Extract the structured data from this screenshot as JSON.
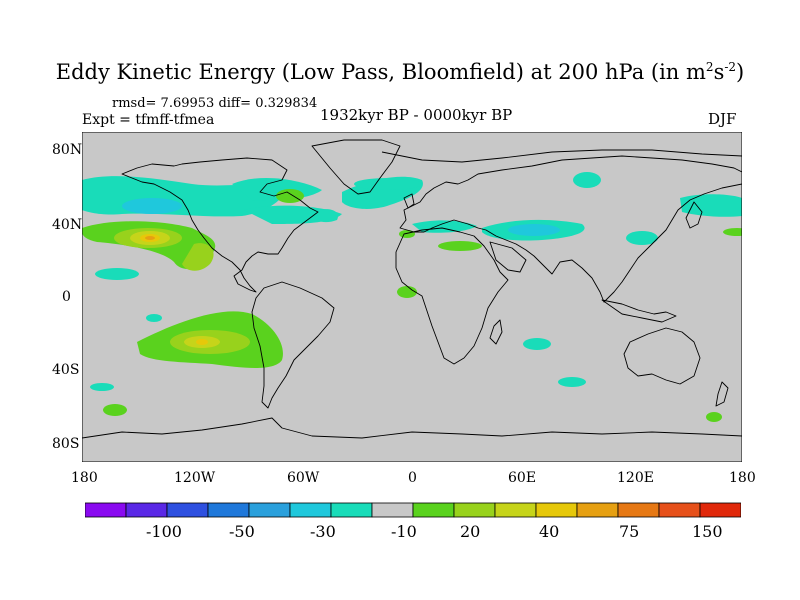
{
  "title": {
    "main": "Eddy Kinetic Energy (Low Pass, Bloomfield) at 200 hPa (in m",
    "sup1": "2",
    "mid": "s",
    "sup2": "-2",
    "end": ")"
  },
  "stats": "rmsd= 7.69953 diff= 0.329834",
  "experiment": "Expt = tfmff-tfmea",
  "period": "1932kyr BP - 0000kyr BP",
  "season": "DJF",
  "lat_labels": [
    "80N",
    "40N",
    "0",
    "40S",
    "80S"
  ],
  "lon_labels": [
    "180",
    "120W",
    "60W",
    "0",
    "60E",
    "120E",
    "180"
  ],
  "colorbar": {
    "colors": [
      "#8a0af0",
      "#5a28e6",
      "#2e50e0",
      "#1f78da",
      "#2aa0dc",
      "#1fc8dc",
      "#19dcb9",
      "#c8c8c8",
      "#5ad21e",
      "#98d21c",
      "#c6d41a",
      "#e6c80a",
      "#e6a012",
      "#e67814",
      "#e6501a",
      "#e0280a"
    ],
    "labels": [
      "-100",
      "-50",
      "-30",
      "-10",
      "20",
      "40",
      "75",
      "150"
    ]
  },
  "colors": {
    "background": "#c8c8c8",
    "neg_weak": "#19dcb9",
    "neg_mod": "#1fc8dc",
    "neg_strong": "#2aa0dc",
    "pos_weak": "#5ad21e",
    "pos_mod": "#98d21c",
    "pos_strong": "#c6d41a",
    "pos_peak": "#e6c80a",
    "pos_top": "#e6a012",
    "coast": "#000000"
  }
}
